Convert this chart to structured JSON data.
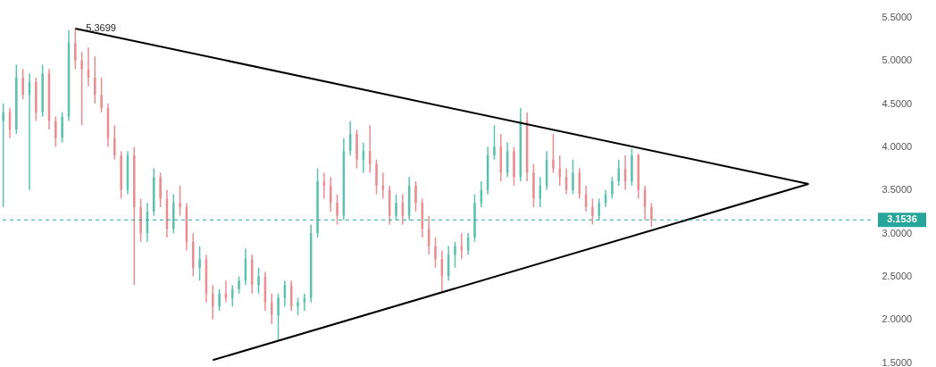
{
  "chart_data": {
    "type": "candlestick",
    "categories": [
      null,
      null,
      null,
      null,
      null,
      null,
      null,
      null,
      null,
      null,
      null,
      null,
      null,
      null,
      null,
      null,
      null,
      null,
      null,
      null,
      null,
      null,
      null,
      null,
      null,
      null,
      null,
      null,
      null,
      null,
      null,
      null,
      null,
      null,
      null,
      null,
      null,
      null,
      null,
      null,
      null,
      null,
      null,
      null,
      null,
      null,
      null,
      null,
      null,
      null,
      null,
      null,
      null,
      null,
      null,
      null,
      null,
      null,
      null,
      null,
      null,
      null,
      null,
      null,
      null,
      null,
      null,
      null,
      null,
      null,
      null,
      null,
      null,
      null,
      null,
      null,
      null,
      null,
      null,
      null,
      null,
      null,
      null,
      null,
      null,
      null,
      null,
      null,
      null,
      null,
      null,
      null,
      null,
      null,
      null,
      null,
      null,
      null,
      null,
      null,
      null,
      null,
      null,
      null,
      null,
      null,
      null,
      null,
      null,
      null,
      null,
      null,
      null,
      null,
      null,
      null,
      null,
      null,
      null,
      null,
      null,
      null,
      null,
      null,
      null,
      null,
      null,
      null,
      null,
      null,
      null,
      null,
      null
    ],
    "ohlc": [
      [
        4.3,
        4.5,
        3.3,
        4.4
      ],
      [
        4.4,
        4.45,
        4.1,
        4.2
      ],
      [
        4.2,
        4.95,
        4.15,
        4.8
      ],
      [
        4.8,
        4.9,
        4.55,
        4.6
      ],
      [
        4.6,
        4.85,
        3.5,
        4.75
      ],
      [
        4.75,
        4.8,
        4.3,
        4.4
      ],
      [
        4.4,
        4.95,
        4.35,
        4.85
      ],
      [
        4.85,
        4.9,
        4.2,
        4.3
      ],
      [
        4.3,
        4.35,
        4.0,
        4.1
      ],
      [
        4.1,
        4.4,
        4.05,
        4.35
      ],
      [
        4.35,
        5.35,
        4.3,
        5.2
      ],
      [
        5.2,
        5.3699,
        4.9,
        5.0
      ],
      [
        5.0,
        5.1,
        4.25,
        4.9
      ],
      [
        4.9,
        5.15,
        4.7,
        4.8
      ],
      [
        4.8,
        5.05,
        4.5,
        4.6
      ],
      [
        4.6,
        4.8,
        4.4,
        4.45
      ],
      [
        4.45,
        4.5,
        4.0,
        4.1
      ],
      [
        4.1,
        4.25,
        3.85,
        3.9
      ],
      [
        3.9,
        3.95,
        3.4,
        3.5
      ],
      [
        3.5,
        3.95,
        3.45,
        3.9
      ],
      [
        3.9,
        4.0,
        2.4,
        3.3
      ],
      [
        3.3,
        3.4,
        2.9,
        3.0
      ],
      [
        3.0,
        3.35,
        2.9,
        3.25
      ],
      [
        3.25,
        3.75,
        3.2,
        3.65
      ],
      [
        3.65,
        3.7,
        3.3,
        3.4
      ],
      [
        3.4,
        3.5,
        2.95,
        3.05
      ],
      [
        3.05,
        3.45,
        3.0,
        3.35
      ],
      [
        3.35,
        3.55,
        3.2,
        3.3
      ],
      [
        3.3,
        3.35,
        2.8,
        2.9
      ],
      [
        2.9,
        3.0,
        2.5,
        2.6
      ],
      [
        2.6,
        2.85,
        2.45,
        2.7
      ],
      [
        2.7,
        2.75,
        2.2,
        2.3
      ],
      [
        2.3,
        2.4,
        2.0,
        2.15
      ],
      [
        2.15,
        2.35,
        2.1,
        2.3
      ],
      [
        2.3,
        2.45,
        2.2,
        2.25
      ],
      [
        2.25,
        2.4,
        2.15,
        2.35
      ],
      [
        2.35,
        2.5,
        2.3,
        2.45
      ],
      [
        2.45,
        2.82,
        2.4,
        2.7
      ],
      [
        2.7,
        2.75,
        2.3,
        2.4
      ],
      [
        2.4,
        2.6,
        2.3,
        2.5
      ],
      [
        2.5,
        2.55,
        2.1,
        2.2
      ],
      [
        2.2,
        2.3,
        1.95,
        2.05
      ],
      [
        2.05,
        2.3,
        1.75,
        2.25
      ],
      [
        2.25,
        2.45,
        2.15,
        2.4
      ],
      [
        2.4,
        2.45,
        2.1,
        2.15
      ],
      [
        2.15,
        2.25,
        2.05,
        2.2
      ],
      [
        2.2,
        2.3,
        2.1,
        2.25
      ],
      [
        2.25,
        3.1,
        2.2,
        3.0
      ],
      [
        3.0,
        3.75,
        2.95,
        3.6
      ],
      [
        3.6,
        3.7,
        3.4,
        3.55
      ],
      [
        3.55,
        3.65,
        3.25,
        3.35
      ],
      [
        3.35,
        3.45,
        3.1,
        3.2
      ],
      [
        3.2,
        4.1,
        3.15,
        3.95
      ],
      [
        3.95,
        4.3,
        3.9,
        4.15
      ],
      [
        4.15,
        4.2,
        3.75,
        3.85
      ],
      [
        3.85,
        4.05,
        3.7,
        3.95
      ],
      [
        3.95,
        4.25,
        3.7,
        3.8
      ],
      [
        3.8,
        3.85,
        3.45,
        3.55
      ],
      [
        3.55,
        3.7,
        3.4,
        3.5
      ],
      [
        3.5,
        3.55,
        3.1,
        3.2
      ],
      [
        3.2,
        3.45,
        3.15,
        3.35
      ],
      [
        3.35,
        3.45,
        3.1,
        3.2
      ],
      [
        3.2,
        3.65,
        3.15,
        3.55
      ],
      [
        3.55,
        3.6,
        3.25,
        3.35
      ],
      [
        3.35,
        3.4,
        2.95,
        3.05
      ],
      [
        3.05,
        3.2,
        2.75,
        2.85
      ],
      [
        2.85,
        2.95,
        2.6,
        2.7
      ],
      [
        2.7,
        2.8,
        2.33,
        2.5
      ],
      [
        2.5,
        2.85,
        2.45,
        2.75
      ],
      [
        2.75,
        2.9,
        2.6,
        2.85
      ],
      [
        2.85,
        3.0,
        2.7,
        2.8
      ],
      [
        2.8,
        3.0,
        2.75,
        2.95
      ],
      [
        2.95,
        3.45,
        2.9,
        3.35
      ],
      [
        3.35,
        3.6,
        3.3,
        3.5
      ],
      [
        3.5,
        4.0,
        3.45,
        3.9
      ],
      [
        3.9,
        4.25,
        3.85,
        4.0
      ],
      [
        4.0,
        4.15,
        3.6,
        3.7
      ],
      [
        3.7,
        4.05,
        3.65,
        3.95
      ],
      [
        3.95,
        4.0,
        3.55,
        3.65
      ],
      [
        3.65,
        4.45,
        3.6,
        4.3
      ],
      [
        4.3,
        4.4,
        3.6,
        3.7
      ],
      [
        3.7,
        3.8,
        3.3,
        3.4
      ],
      [
        3.4,
        3.65,
        3.3,
        3.55
      ],
      [
        3.55,
        3.95,
        3.5,
        3.85
      ],
      [
        3.85,
        4.15,
        3.7,
        3.75
      ],
      [
        3.75,
        3.9,
        3.55,
        3.65
      ],
      [
        3.65,
        3.75,
        3.45,
        3.5
      ],
      [
        3.5,
        3.85,
        3.45,
        3.7
      ],
      [
        3.7,
        3.75,
        3.4,
        3.45
      ],
      [
        3.45,
        3.55,
        3.25,
        3.3
      ],
      [
        3.3,
        3.4,
        3.1,
        3.2
      ],
      [
        3.2,
        3.4,
        3.15,
        3.35
      ],
      [
        3.35,
        3.5,
        3.3,
        3.45
      ],
      [
        3.45,
        3.65,
        3.4,
        3.6
      ],
      [
        3.6,
        3.85,
        3.55,
        3.75
      ],
      [
        3.75,
        3.9,
        3.5,
        3.6
      ],
      [
        3.6,
        3.98,
        3.55,
        3.9
      ],
      [
        3.9,
        3.92,
        3.4,
        3.5
      ],
      [
        3.5,
        3.55,
        3.15,
        3.3
      ],
      [
        3.3,
        3.35,
        3.07,
        3.1536
      ],
      null,
      null,
      null,
      null,
      null,
      null,
      null,
      null,
      null,
      null,
      null,
      null,
      null,
      null,
      null,
      null,
      null,
      null,
      null,
      null,
      null,
      null,
      null,
      null,
      null,
      null,
      null,
      null,
      null,
      null,
      null,
      null,
      null
    ],
    "colors": [
      "#5cc2ad",
      "#eb8c91",
      "#5cc2ad",
      "#eb8c91",
      "#5cc2ad",
      "#eb8c91",
      "#5cc2ad",
      "#eb8c91",
      "#eb8c91",
      "#5cc2ad",
      "#5cc2ad",
      "#eb8c91",
      "#eb8c91",
      "#eb8c91",
      "#eb8c91",
      "#eb8c91",
      "#eb8c91",
      "#eb8c91",
      "#eb8c91",
      "#5cc2ad",
      "#eb8c91",
      "#eb8c91",
      "#5cc2ad",
      "#5cc2ad",
      "#eb8c91",
      "#eb8c91",
      "#5cc2ad",
      "#eb8c91",
      "#eb8c91",
      "#eb8c91",
      "#5cc2ad",
      "#eb8c91",
      "#eb8c91",
      "#5cc2ad",
      "#eb8c91",
      "#5cc2ad",
      "#5cc2ad",
      "#5cc2ad",
      "#eb8c91",
      "#5cc2ad",
      "#eb8c91",
      "#eb8c91",
      "#5cc2ad",
      "#5cc2ad",
      "#eb8c91",
      "#5cc2ad",
      "#5cc2ad",
      "#5cc2ad",
      "#5cc2ad",
      "#eb8c91",
      "#eb8c91",
      "#eb8c91",
      "#5cc2ad",
      "#5cc2ad",
      "#eb8c91",
      "#5cc2ad",
      "#eb8c91",
      "#eb8c91",
      "#eb8c91",
      "#eb8c91",
      "#5cc2ad",
      "#eb8c91",
      "#5cc2ad",
      "#eb8c91",
      "#eb8c91",
      "#eb8c91",
      "#eb8c91",
      "#eb8c91",
      "#5cc2ad",
      "#5cc2ad",
      "#eb8c91",
      "#5cc2ad",
      "#5cc2ad",
      "#5cc2ad",
      "#5cc2ad",
      "#5cc2ad",
      "#eb8c91",
      "#5cc2ad",
      "#eb8c91",
      "#5cc2ad",
      "#eb8c91",
      "#eb8c91",
      "#5cc2ad",
      "#5cc2ad",
      "#eb8c91",
      "#eb8c91",
      "#eb8c91",
      "#5cc2ad",
      "#eb8c91",
      "#eb8c91",
      "#eb8c91",
      "#5cc2ad",
      "#5cc2ad",
      "#5cc2ad",
      "#5cc2ad",
      "#eb8c91",
      "#5cc2ad",
      "#eb8c91",
      "#eb8c91",
      "#eb8c91",
      null,
      null,
      null,
      null,
      null,
      null,
      null,
      null,
      null,
      null,
      null,
      null,
      null,
      null,
      null,
      null,
      null,
      null,
      null,
      null,
      null,
      null,
      null,
      null,
      null,
      null,
      null,
      null,
      null,
      null,
      null,
      null,
      null
    ],
    "series": [
      {
        "type": "line",
        "color": "#000000",
        "values": [
          null,
          null,
          null,
          null,
          null,
          null,
          null,
          null,
          null,
          null,
          null,
          5.37,
          null,
          null,
          null,
          null,
          null,
          null,
          null,
          null,
          null,
          null,
          null,
          null,
          null,
          null,
          null,
          null,
          null,
          null,
          null,
          null,
          null,
          null,
          null,
          null,
          null,
          null,
          null,
          null,
          null,
          null,
          null,
          null,
          null,
          null,
          null,
          null,
          null,
          null,
          null,
          null,
          null,
          null,
          null,
          null,
          null,
          null,
          null,
          null,
          null,
          null,
          null,
          null,
          null,
          null,
          null,
          null,
          null,
          null,
          null,
          null,
          null,
          null,
          null,
          null,
          null,
          null,
          null,
          null,
          null,
          null,
          null,
          null,
          null,
          null,
          null,
          null,
          null,
          null,
          null,
          null,
          null,
          null,
          null,
          null,
          null,
          null,
          null,
          null,
          null,
          null,
          null,
          null,
          null,
          null,
          null,
          null,
          null,
          null,
          null,
          null,
          null,
          null,
          null,
          null,
          null,
          null,
          null,
          null,
          null,
          null,
          null,
          3.57,
          null,
          null,
          null,
          null,
          null,
          null,
          null,
          null,
          null
        ]
      },
      {
        "type": "line",
        "color": "#000000",
        "values": [
          null,
          null,
          null,
          null,
          null,
          null,
          null,
          null,
          null,
          null,
          null,
          null,
          null,
          null,
          null,
          null,
          null,
          null,
          null,
          null,
          null,
          null,
          null,
          null,
          null,
          null,
          null,
          null,
          null,
          null,
          null,
          null,
          1.53,
          null,
          null,
          null,
          null,
          null,
          null,
          null,
          null,
          null,
          null,
          null,
          null,
          null,
          null,
          null,
          null,
          null,
          null,
          null,
          null,
          null,
          null,
          null,
          null,
          null,
          null,
          null,
          null,
          null,
          null,
          null,
          null,
          null,
          null,
          null,
          null,
          null,
          null,
          null,
          null,
          null,
          null,
          null,
          null,
          null,
          null,
          null,
          null,
          null,
          null,
          null,
          null,
          null,
          null,
          null,
          null,
          null,
          null,
          null,
          null,
          null,
          null,
          null,
          null,
          null,
          null,
          null,
          null,
          null,
          null,
          null,
          null,
          null,
          null,
          null,
          null,
          null,
          null,
          null,
          null,
          null,
          null,
          null,
          null,
          null,
          null,
          null,
          null,
          null,
          null,
          3.57,
          null,
          null,
          null,
          null,
          null,
          null,
          null,
          null,
          null
        ]
      }
    ],
    "ylim": [
      1.45,
      5.7
    ],
    "yticks": [
      {
        "value": 1.5,
        "label": "1.5000"
      },
      {
        "value": 2,
        "label": "2.0000"
      },
      {
        "value": 2.5,
        "label": "2.5000"
      },
      {
        "value": 3,
        "label": "3.0000"
      },
      {
        "value": 3.5,
        "label": "3.5000"
      },
      {
        "value": 4,
        "label": "4.0000"
      },
      {
        "value": 4.5,
        "label": "4.5000"
      },
      {
        "value": 5,
        "label": "5.0000"
      },
      {
        "value": 5.5,
        "label": "5.5000"
      }
    ],
    "ref_lines": [
      {
        "axis": "y",
        "value": 3.1536,
        "label": "3.1536",
        "color": "#26a69a",
        "line_style": "dashed"
      }
    ],
    "annotations": [
      "5.3699"
    ],
    "tick_labels": "y"
  }
}
